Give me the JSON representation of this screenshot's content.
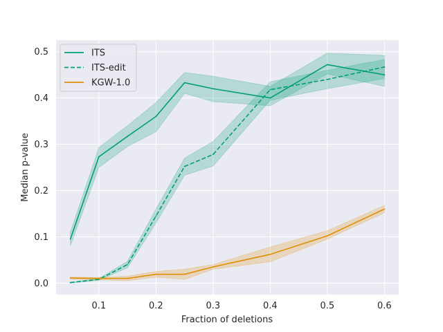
{
  "chart_data": {
    "type": "line",
    "title": "",
    "xlabel": "Fraction of deletions",
    "ylabel": "Median p-value",
    "xlim": [
      0.025,
      0.625
    ],
    "ylim": [
      -0.025,
      0.525
    ],
    "xticks": [
      0.1,
      0.2,
      0.3,
      0.4,
      0.5,
      0.6
    ],
    "xtick_labels": [
      "0.1",
      "0.2",
      "0.3",
      "0.4",
      "0.5",
      "0.6"
    ],
    "yticks": [
      0.0,
      0.1,
      0.2,
      0.3,
      0.4,
      0.5
    ],
    "ytick_labels": [
      "0.0",
      "0.1",
      "0.2",
      "0.3",
      "0.4",
      "0.5"
    ],
    "grid": true,
    "legend_position": "top-left",
    "x": [
      0.05,
      0.1,
      0.15,
      0.2,
      0.25,
      0.3,
      0.4,
      0.5,
      0.6
    ],
    "series": [
      {
        "name": "ITS",
        "color": "#009e73",
        "dash": "solid",
        "values": [
          0.095,
          0.273,
          0.317,
          0.36,
          0.433,
          0.42,
          0.4,
          0.472,
          0.45
        ],
        "lower": [
          0.08,
          0.25,
          0.295,
          0.327,
          0.41,
          0.392,
          0.383,
          0.452,
          0.425
        ],
        "upper": [
          0.11,
          0.293,
          0.34,
          0.39,
          0.455,
          0.447,
          0.425,
          0.497,
          0.492
        ]
      },
      {
        "name": "ITS-edit",
        "color": "#009e73",
        "dash": "dashed",
        "values": [
          0.001,
          0.008,
          0.04,
          0.145,
          0.252,
          0.278,
          0.418,
          0.44,
          0.467
        ],
        "lower": [
          0.0,
          0.006,
          0.033,
          0.13,
          0.233,
          0.253,
          0.395,
          0.42,
          0.442
        ],
        "upper": [
          0.002,
          0.01,
          0.047,
          0.16,
          0.27,
          0.306,
          0.435,
          0.46,
          0.483
        ]
      },
      {
        "name": "KGW-1.0",
        "color": "#de8f05",
        "dash": "solid",
        "values": [
          0.011,
          0.01,
          0.01,
          0.019,
          0.019,
          0.035,
          0.062,
          0.102,
          0.16
        ],
        "lower": [
          0.008,
          0.007,
          0.005,
          0.013,
          0.008,
          0.03,
          0.046,
          0.095,
          0.152
        ],
        "upper": [
          0.013,
          0.012,
          0.015,
          0.025,
          0.03,
          0.04,
          0.078,
          0.113,
          0.168
        ]
      }
    ]
  }
}
